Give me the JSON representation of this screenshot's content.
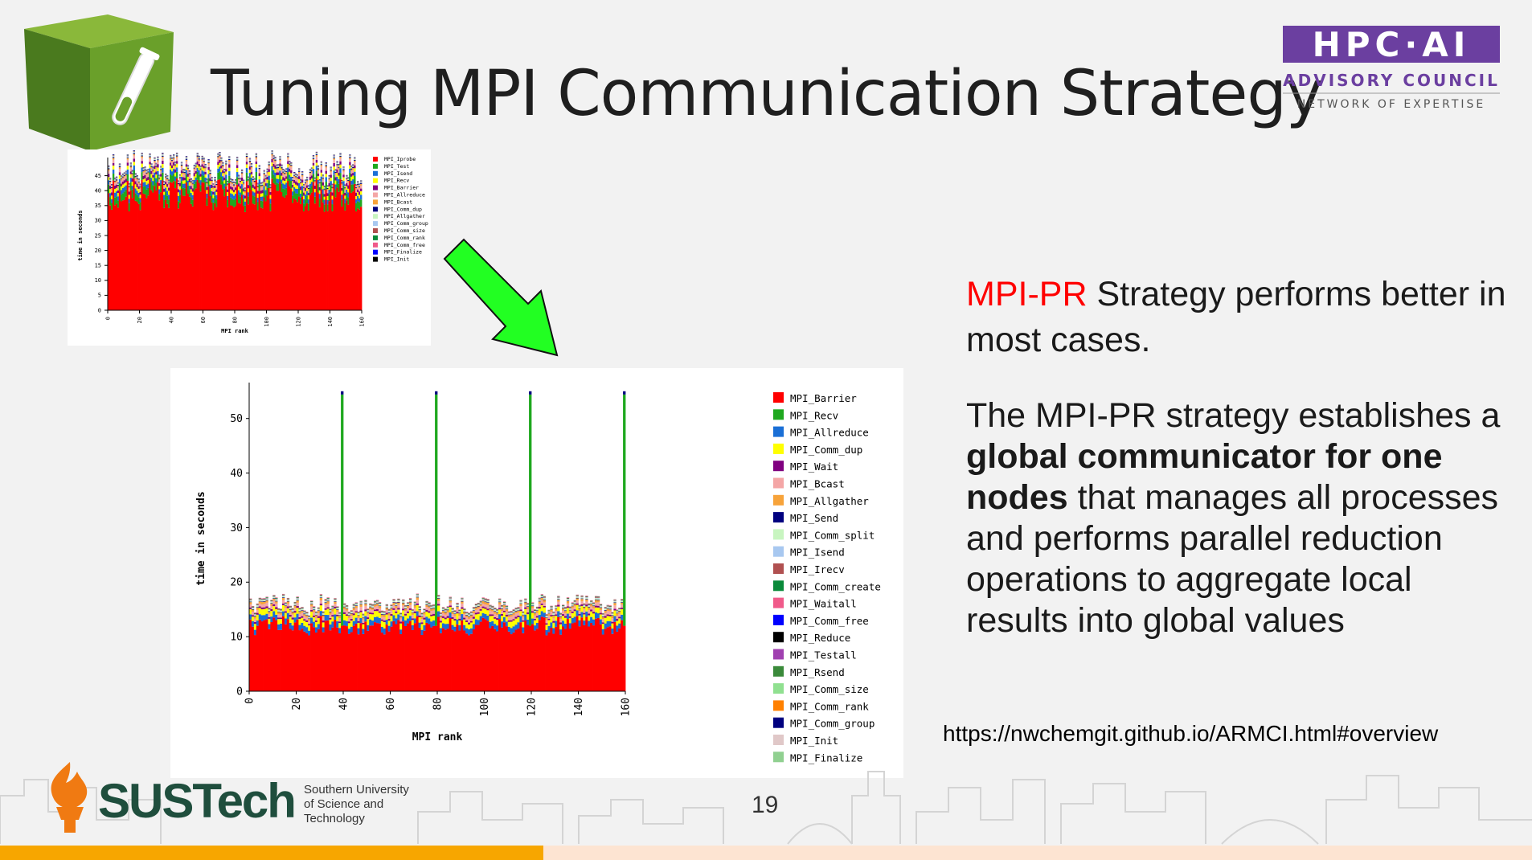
{
  "slide": {
    "title": "Tuning MPI Communication Strategy",
    "page_number": "19",
    "url": "https://nwchemgit.github.io/ARMCI.html#overview"
  },
  "hpc_logo": {
    "line1": "HPC·AI",
    "line2": "ADVISORY COUNCIL",
    "line3": "NETWORK OF EXPERTISE",
    "color": "#6b3fa0"
  },
  "sustech_logo": {
    "word": "SUSTech",
    "sub1": "Southern University",
    "sub2": "of Science and",
    "sub3": "Technology"
  },
  "text": {
    "p1_highlight": "MPI-PR",
    "p1_rest": " Strategy performs better in most cases.",
    "p2_a": "The MPI-PR strategy establishes a ",
    "p2_bold": "global communicator for one nodes",
    "p2_b": " that manages all processes and performs parallel reduction operations to aggregate local results into global values"
  },
  "icons": [
    "test-tube-cube-icon",
    "down-right-arrow-icon"
  ],
  "chart_data": [
    {
      "type": "bar",
      "stacked": true,
      "ylabel": "time in seconds",
      "xlabel": "MPI rank",
      "ylim": [
        0,
        50
      ],
      "yticks": [
        0,
        5,
        10,
        15,
        20,
        25,
        30,
        35,
        40,
        45
      ],
      "xticks": [
        0,
        20,
        40,
        60,
        80,
        100,
        120,
        140,
        160
      ],
      "ranks": 160,
      "legend_position": "right",
      "series": [
        {
          "name": "MPI_Iprobe",
          "value": 38.5,
          "color": "#ff0000"
        },
        {
          "name": "MPI_Test",
          "value": 2.5,
          "color": "#1fa81f"
        },
        {
          "name": "MPI_Isend",
          "value": 1.5,
          "color": "#1a6fd6"
        },
        {
          "name": "MPI_Recv",
          "value": 1.2,
          "color": "#ffff00"
        },
        {
          "name": "MPI_Barrier",
          "value": 1.0,
          "color": "#800080"
        },
        {
          "name": "MPI_Allreduce",
          "value": 1.0,
          "color": "#f4a6a6"
        },
        {
          "name": "MPI_Bcast",
          "value": 0.5,
          "color": "#f7a33a"
        },
        {
          "name": "MPI_Comm_dup",
          "value": 0.3,
          "color": "#00007f"
        },
        {
          "name": "MPI_Allgather",
          "value": 0.2,
          "color": "#c8f5c0"
        },
        {
          "name": "MPI_Comm_group",
          "value": 0.2,
          "color": "#a8c8f0"
        },
        {
          "name": "MPI_Comm_size",
          "value": 0.1,
          "color": "#b05050"
        },
        {
          "name": "MPI_Comm_rank",
          "value": 0.1,
          "color": "#0a8a3a"
        },
        {
          "name": "MPI_Comm_free",
          "value": 0.1,
          "color": "#f05a8a"
        },
        {
          "name": "MPI_Finalize",
          "value": 0.1,
          "color": "#0000ff"
        },
        {
          "name": "MPI_Init",
          "value": 0.1,
          "color": "#000000"
        }
      ]
    },
    {
      "type": "bar",
      "stacked": true,
      "ylabel": "time in seconds",
      "xlabel": "MPI rank",
      "ylim": [
        0,
        56
      ],
      "yticks": [
        0,
        10,
        20,
        30,
        40,
        50
      ],
      "xticks": [
        0,
        20,
        40,
        60,
        80,
        100,
        120,
        140,
        160
      ],
      "ranks": 160,
      "spike_ranks": [
        39,
        79,
        119,
        159
      ],
      "spike_value": 55,
      "legend_position": "right",
      "series": [
        {
          "name": "MPI_Barrier",
          "value": 12.0,
          "color": "#ff0000"
        },
        {
          "name": "MPI_Recv",
          "value": 0.0,
          "color": "#1fa81f"
        },
        {
          "name": "MPI_Allreduce",
          "value": 1.0,
          "color": "#1a6fd6"
        },
        {
          "name": "MPI_Comm_dup",
          "value": 1.0,
          "color": "#ffff00"
        },
        {
          "name": "MPI_Wait",
          "value": 0.3,
          "color": "#800080"
        },
        {
          "name": "MPI_Bcast",
          "value": 0.6,
          "color": "#f4a6a6"
        },
        {
          "name": "MPI_Allgather",
          "value": 0.4,
          "color": "#f7a33a"
        },
        {
          "name": "MPI_Send",
          "value": 0.1,
          "color": "#00007f"
        },
        {
          "name": "MPI_Comm_split",
          "value": 0.2,
          "color": "#c8f5c0"
        },
        {
          "name": "MPI_Isend",
          "value": 0.1,
          "color": "#a8c8f0"
        },
        {
          "name": "MPI_Irecv",
          "value": 0.1,
          "color": "#b05050"
        },
        {
          "name": "MPI_Comm_create",
          "value": 0.1,
          "color": "#0a8a3a"
        },
        {
          "name": "MPI_Waitall",
          "value": 0.1,
          "color": "#f05a8a"
        },
        {
          "name": "MPI_Comm_free",
          "value": 0.0,
          "color": "#0000ff"
        },
        {
          "name": "MPI_Reduce",
          "value": 0.0,
          "color": "#000000"
        },
        {
          "name": "MPI_Testall",
          "value": 0.0,
          "color": "#a040b0"
        },
        {
          "name": "MPI_Rsend",
          "value": 0.0,
          "color": "#3a8a3a"
        },
        {
          "name": "MPI_Comm_size",
          "value": 0.0,
          "color": "#90e090"
        },
        {
          "name": "MPI_Comm_rank",
          "value": 0.0,
          "color": "#ff8000"
        },
        {
          "name": "MPI_Comm_group",
          "value": 0.0,
          "color": "#00007f"
        },
        {
          "name": "MPI_Init",
          "value": 0.0,
          "color": "#e0c8c8"
        },
        {
          "name": "MPI_Finalize",
          "value": 0.0,
          "color": "#90d090"
        }
      ]
    }
  ]
}
